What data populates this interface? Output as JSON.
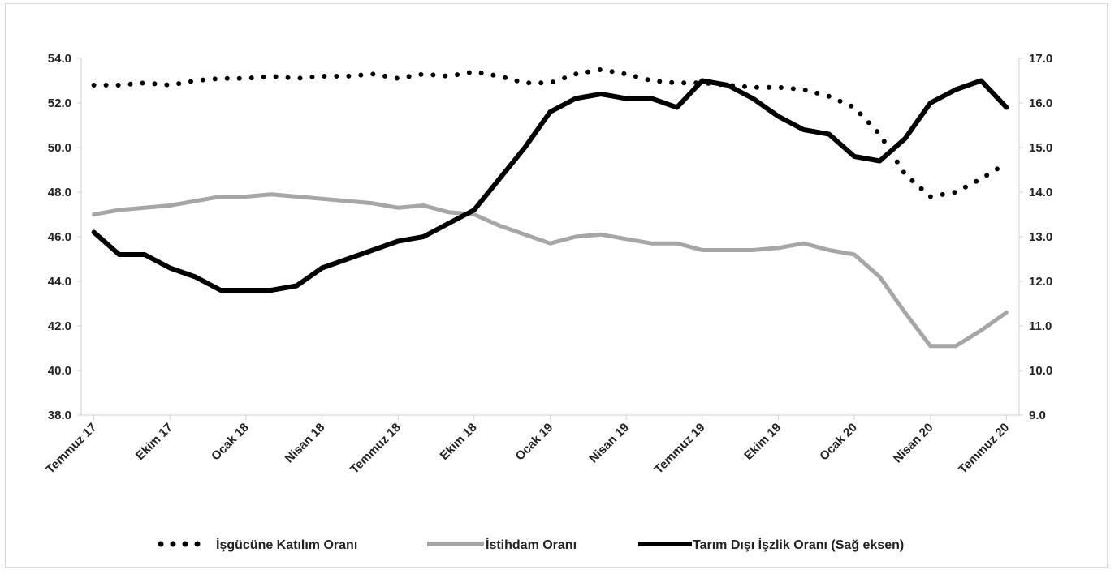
{
  "chart_data": {
    "type": "line",
    "x_tick_labels": [
      "Temmuz 17",
      "Ekim 17",
      "Ocak 18",
      "Nisan 18",
      "Temmuz 18",
      "Ekim 18",
      "Ocak 19",
      "Nisan 19",
      "Temmuz 19",
      "Ekim 19",
      "Ocak 20",
      "Nisan 20",
      "Temmuz 20"
    ],
    "left_axis": {
      "min": 38.0,
      "max": 54.0,
      "step": 2.0,
      "tick_labels": [
        "38.0",
        "40.0",
        "42.0",
        "44.0",
        "46.0",
        "48.0",
        "50.0",
        "52.0",
        "54.0"
      ]
    },
    "right_axis": {
      "min": 9.0,
      "max": 17.0,
      "step": 1.0,
      "tick_labels": [
        "9.0",
        "10.0",
        "11.0",
        "12.0",
        "13.0",
        "14.0",
        "15.0",
        "16.0",
        "17.0"
      ]
    },
    "x": [
      "2017-07",
      "2017-08",
      "2017-09",
      "2017-10",
      "2017-11",
      "2017-12",
      "2018-01",
      "2018-02",
      "2018-03",
      "2018-04",
      "2018-05",
      "2018-06",
      "2018-07",
      "2018-08",
      "2018-09",
      "2018-10",
      "2018-11",
      "2018-12",
      "2019-01",
      "2019-02",
      "2019-03",
      "2019-04",
      "2019-05",
      "2019-06",
      "2019-07",
      "2019-08",
      "2019-09",
      "2019-10",
      "2019-11",
      "2019-12",
      "2020-01",
      "2020-02",
      "2020-03",
      "2020-04",
      "2020-05",
      "2020-06",
      "2020-07"
    ],
    "series": [
      {
        "name": "İşgücüne Katılım Oranı",
        "axis": "left",
        "style": "dotted",
        "color": "#000000",
        "values": [
          52.8,
          52.8,
          52.9,
          52.8,
          53.0,
          53.1,
          53.1,
          53.2,
          53.1,
          53.2,
          53.2,
          53.3,
          53.1,
          53.3,
          53.2,
          53.4,
          53.2,
          52.9,
          52.9,
          53.3,
          53.5,
          53.3,
          53.0,
          52.9,
          52.9,
          52.8,
          52.7,
          52.7,
          52.6,
          52.3,
          51.8,
          50.6,
          48.8,
          47.8,
          48.0,
          48.6,
          49.3
        ]
      },
      {
        "name": "İstihdam Oranı",
        "axis": "left",
        "style": "solid",
        "color": "#a6a6a6",
        "values": [
          47.0,
          47.2,
          47.3,
          47.4,
          47.6,
          47.8,
          47.8,
          47.9,
          47.8,
          47.7,
          47.6,
          47.5,
          47.3,
          47.4,
          47.1,
          47.0,
          46.5,
          46.1,
          45.7,
          46.0,
          46.1,
          45.9,
          45.7,
          45.7,
          45.4,
          45.4,
          45.4,
          45.5,
          45.7,
          45.4,
          45.2,
          44.2,
          42.6,
          41.1,
          41.1,
          41.8,
          42.6
        ]
      },
      {
        "name": "Tarım Dışı İşzlik Oranı (Sağ eksen)",
        "axis": "right",
        "style": "solid",
        "color": "#000000",
        "values": [
          13.1,
          12.6,
          12.6,
          12.3,
          12.1,
          11.8,
          11.8,
          11.8,
          11.9,
          12.3,
          12.5,
          12.7,
          12.9,
          13.0,
          13.3,
          13.6,
          14.3,
          15.0,
          15.8,
          16.1,
          16.2,
          16.1,
          16.1,
          15.9,
          16.5,
          16.4,
          16.1,
          15.7,
          15.4,
          15.3,
          14.8,
          14.7,
          15.2,
          16.0,
          16.3,
          16.5,
          15.9
        ]
      }
    ],
    "legend_position": "bottom",
    "grid": false
  }
}
